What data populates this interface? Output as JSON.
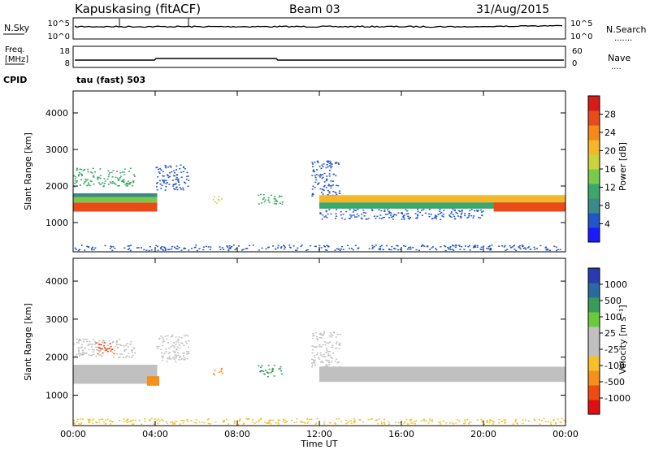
{
  "header": {
    "station": "Kapuskasing (fitACF)",
    "beam": "Beam 03",
    "date": "31/Aug/2015"
  },
  "noise_panel": {
    "left_label": "N.Sky",
    "right_label": "N.Search",
    "left_ticks": [
      "10^5",
      "10^0"
    ],
    "right_ticks": [
      "10^5",
      "10^0"
    ],
    "right_legend_style": "......."
  },
  "freq_panel": {
    "left_label_1": "Freq.",
    "left_label_2": "[MHz]",
    "right_label": "Nave",
    "left_ticks": [
      "18",
      "8"
    ],
    "right_ticks": [
      "60",
      "0"
    ],
    "right_legend_style": "....",
    "cpid_label": "CPID",
    "cpid_value": "tau (fast) 503"
  },
  "chart_data": [
    {
      "type": "heatmap",
      "name": "power-panel",
      "ylabel": "Slant Range [km]",
      "ylim": [
        200,
        4600
      ],
      "yticks": [
        "4000",
        "3000",
        "2000",
        "1000"
      ],
      "xlim": [
        "00:00",
        "24:00"
      ],
      "colorbar": {
        "label": "Power [dB]",
        "ticks": [
          "28",
          "24",
          "20",
          "16",
          "12",
          "8",
          "4"
        ],
        "colors": [
          "#1a1aff",
          "#2255cc",
          "#3a8a8a",
          "#3aa86a",
          "#79c94a",
          "#c8d43a",
          "#f5b62a",
          "#f58a1a",
          "#e84a1a",
          "#d91a1a"
        ]
      },
      "bands": [
        {
          "t0": 0.0,
          "t1": 4.1,
          "r0": 1300,
          "r1": 1550,
          "color": "#e84a1a"
        },
        {
          "t0": 0.0,
          "t1": 4.1,
          "r0": 1550,
          "r1": 1700,
          "color": "#79c94a"
        },
        {
          "t0": 0.0,
          "t1": 4.1,
          "r0": 1700,
          "r1": 1800,
          "color": "#3a8a8a"
        },
        {
          "t0": 0.0,
          "t1": 3.0,
          "r0": 2000,
          "r1": 2500,
          "color": "#3aa86a",
          "sparse": true
        },
        {
          "t0": 4.0,
          "t1": 5.6,
          "r0": 1900,
          "r1": 2600,
          "color": "#2255cc",
          "sparse": true
        },
        {
          "t0": 6.8,
          "t1": 7.3,
          "r0": 1550,
          "r1": 1750,
          "color": "#c8d43a",
          "sparse": true
        },
        {
          "t0": 9.0,
          "t1": 10.2,
          "r0": 1500,
          "r1": 1800,
          "color": "#3aa86a",
          "sparse": true
        },
        {
          "t0": 11.6,
          "t1": 13.0,
          "r0": 1700,
          "r1": 2700,
          "color": "#2255cc",
          "sparse": true
        },
        {
          "t0": 12.0,
          "t1": 24.0,
          "r0": 1550,
          "r1": 1750,
          "color": "#f5b62a"
        },
        {
          "t0": 12.0,
          "t1": 24.0,
          "r0": 1380,
          "r1": 1550,
          "color": "#3aa86a"
        },
        {
          "t0": 12.0,
          "t1": 20.0,
          "r0": 1100,
          "r1": 1380,
          "color": "#2255cc",
          "sparse": true
        },
        {
          "t0": 20.5,
          "t1": 24.0,
          "r0": 1300,
          "r1": 1550,
          "color": "#e84a1a"
        },
        {
          "t0": 0.0,
          "t1": 24.0,
          "r0": 250,
          "r1": 400,
          "color": "#2255cc",
          "sparse": true
        }
      ]
    },
    {
      "type": "heatmap",
      "name": "velocity-panel",
      "ylabel": "Slant Range [km]",
      "ylim": [
        200,
        4600
      ],
      "yticks": [
        "4000",
        "3000",
        "2000",
        "1000"
      ],
      "xlim": [
        "00:00",
        "24:00"
      ],
      "xticks": [
        "00:00",
        "04:00",
        "08:00",
        "12:00",
        "16:00",
        "20:00",
        "00:00"
      ],
      "xlabel": "Time UT",
      "colorbar": {
        "label": "Velocity [m s⁻¹]",
        "ticks": [
          "1000",
          "500",
          "100",
          "25",
          "-25",
          "-100",
          "-500",
          "-1000"
        ],
        "colors": [
          "#e01010",
          "#f04a10",
          "#f5901a",
          "#f5c02a",
          "#c0c0c0",
          "#c0c0c0",
          "#6acb3a",
          "#3a9a5a",
          "#2a6aa0",
          "#2a3ab0"
        ]
      },
      "bands": [
        {
          "t0": 0.0,
          "t1": 4.1,
          "r0": 1300,
          "r1": 1800,
          "color": "#c0c0c0"
        },
        {
          "t0": 0.0,
          "t1": 3.0,
          "r0": 2000,
          "r1": 2500,
          "color": "#c0c0c0",
          "sparse": true
        },
        {
          "t0": 1.0,
          "t1": 2.0,
          "r0": 2100,
          "r1": 2400,
          "color": "#f04a10",
          "sparse": true
        },
        {
          "t0": 3.6,
          "t1": 4.2,
          "r0": 1250,
          "r1": 1500,
          "color": "#f5901a"
        },
        {
          "t0": 4.0,
          "t1": 5.6,
          "r0": 1900,
          "r1": 2600,
          "color": "#c0c0c0",
          "sparse": true
        },
        {
          "t0": 6.8,
          "t1": 7.3,
          "r0": 1550,
          "r1": 1750,
          "color": "#f5901a",
          "sparse": true
        },
        {
          "t0": 9.0,
          "t1": 10.2,
          "r0": 1500,
          "r1": 1800,
          "color": "#3a9a5a",
          "sparse": true
        },
        {
          "t0": 11.6,
          "t1": 13.0,
          "r0": 1700,
          "r1": 2700,
          "color": "#c0c0c0",
          "sparse": true
        },
        {
          "t0": 12.0,
          "t1": 24.0,
          "r0": 1350,
          "r1": 1750,
          "color": "#c0c0c0"
        },
        {
          "t0": 0.0,
          "t1": 24.0,
          "r0": 250,
          "r1": 400,
          "color": "#f5c02a",
          "sparse": true
        }
      ]
    }
  ]
}
